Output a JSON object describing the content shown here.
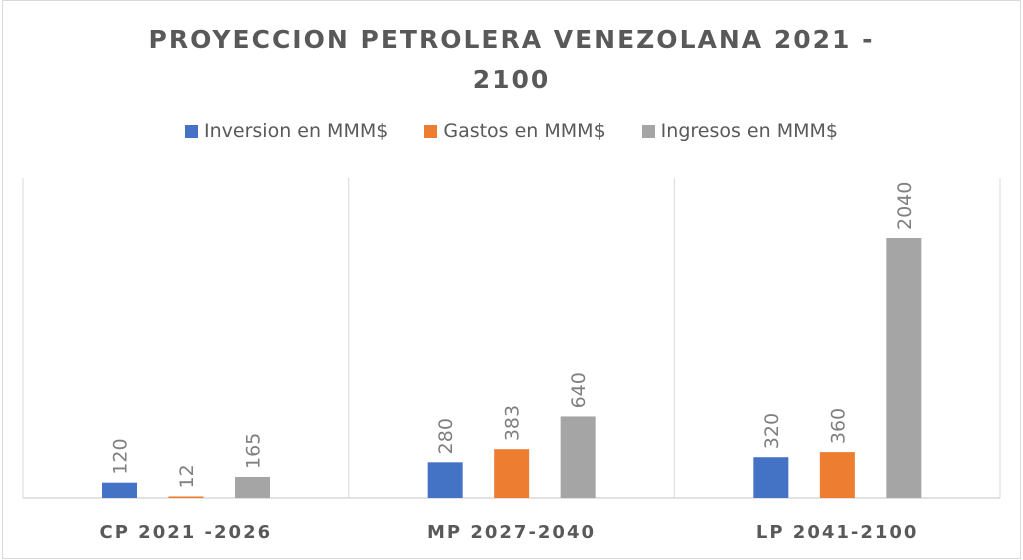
{
  "chart_data": {
    "type": "bar",
    "title": "PROYECCION PETROLERA VENEZOLANA       2021 - 2100",
    "title_lines": [
      "PROYECCION PETROLERA VENEZOLANA       2021 -",
      "2100"
    ],
    "xlabel": "",
    "ylabel": "",
    "categories": [
      "CP 2021 -2026",
      "MP 2027-2040",
      "LP 2041-2100"
    ],
    "series": [
      {
        "name": "Inversion en MMM$",
        "color": "#4472c4",
        "values": [
          120,
          280,
          320
        ]
      },
      {
        "name": "Gastos en MMM$",
        "color": "#ed7d31",
        "values": [
          12,
          383,
          360
        ]
      },
      {
        "name": "Ingresos en MMM$",
        "color": "#a5a5a5",
        "values": [
          165,
          640,
          2040
        ]
      }
    ],
    "ylim": [
      0,
      2500
    ],
    "grid": false,
    "legend_position": "top",
    "data_labels": true
  }
}
